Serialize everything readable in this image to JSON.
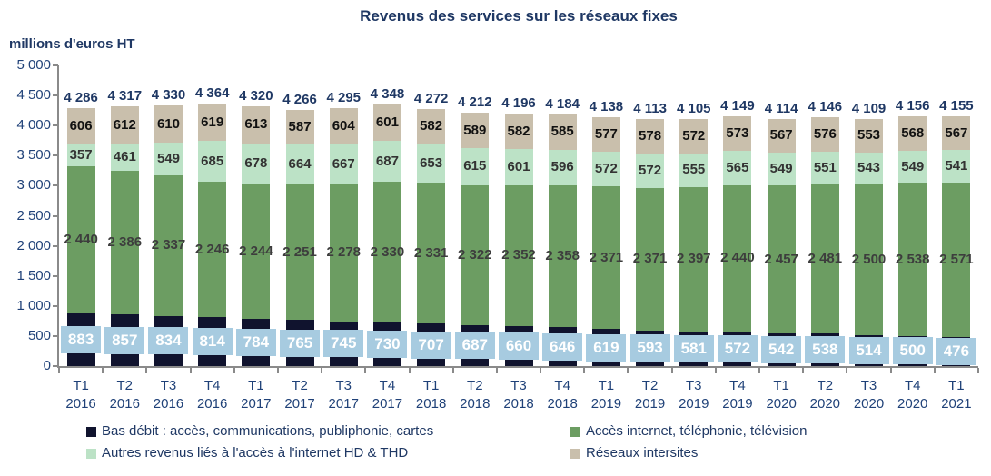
{
  "title": "Revenus des services sur les réseaux fixes",
  "units_label": "millions d'euros HT",
  "colors": {
    "title_text": "#1F3864",
    "axis_text": "#1F4178",
    "axis_line": "#8a8a8a",
    "value_box_fill": "#A7CBE0",
    "value_box_text": "#ffffff"
  },
  "chart_data": {
    "type": "bar",
    "stacked": true,
    "title": "Revenus des services sur les réseaux fixes",
    "ylabel": "millions d'euros HT",
    "xlabel": "",
    "ylim": [
      0,
      5000
    ],
    "ytick_step": 500,
    "yticks": [
      "0",
      "500",
      "1 000",
      "1 500",
      "2 000",
      "2 500",
      "3 000",
      "3 500",
      "4 000",
      "4 500",
      "5 000"
    ],
    "grid": false,
    "legend_position": "bottom-two-columns",
    "categories": [
      "T1 2016",
      "T2 2016",
      "T3 2016",
      "T4 2016",
      "T1 2017",
      "T2 2017",
      "T3 2017",
      "T4 2017",
      "T1 2018",
      "T2 2018",
      "T3 2018",
      "T4 2018",
      "T1 2019",
      "T2 2019",
      "T3 2019",
      "T4 2019",
      "T1 2020",
      "T2 2020",
      "T3 2020",
      "T4 2020",
      "T1 2021"
    ],
    "series": [
      {
        "name": "Bas débit : accès, communications, publiphonie, cartes",
        "color": "#10132E",
        "label_mode": "box",
        "label_color": "#ffffff",
        "values": [
          883,
          857,
          834,
          814,
          784,
          765,
          745,
          730,
          707,
          687,
          660,
          646,
          619,
          593,
          581,
          572,
          542,
          538,
          514,
          500,
          476
        ]
      },
      {
        "name": "Accès internet, téléphonie, télévision",
        "color": "#6C9D62",
        "label_mode": "text",
        "label_color": "#3D3D3D",
        "values": [
          2440,
          2386,
          2337,
          2246,
          2244,
          2251,
          2278,
          2330,
          2331,
          2322,
          2352,
          2358,
          2371,
          2371,
          2397,
          2440,
          2457,
          2481,
          2500,
          2538,
          2571
        ]
      },
      {
        "name": "Autres revenus liés à l'accès à l'internet HD & THD",
        "color": "#BCE2C6",
        "label_mode": "text",
        "label_color": "#333333",
        "values": [
          357,
          461,
          549,
          685,
          678,
          664,
          667,
          687,
          653,
          615,
          601,
          596,
          572,
          572,
          555,
          565,
          549,
          551,
          543,
          549,
          541
        ]
      },
      {
        "name": "Réseaux intersites",
        "color": "#C9BFAC",
        "label_mode": "text",
        "label_color": "#111111",
        "values": [
          606,
          612,
          610,
          619,
          613,
          587,
          604,
          601,
          582,
          589,
          582,
          585,
          577,
          578,
          572,
          573,
          567,
          576,
          553,
          568,
          567
        ]
      }
    ],
    "totals": [
      4286,
      4317,
      4330,
      4364,
      4320,
      4266,
      4295,
      4348,
      4272,
      4212,
      4196,
      4184,
      4138,
      4113,
      4105,
      4149,
      4114,
      4146,
      4109,
      4156,
      4155
    ]
  }
}
